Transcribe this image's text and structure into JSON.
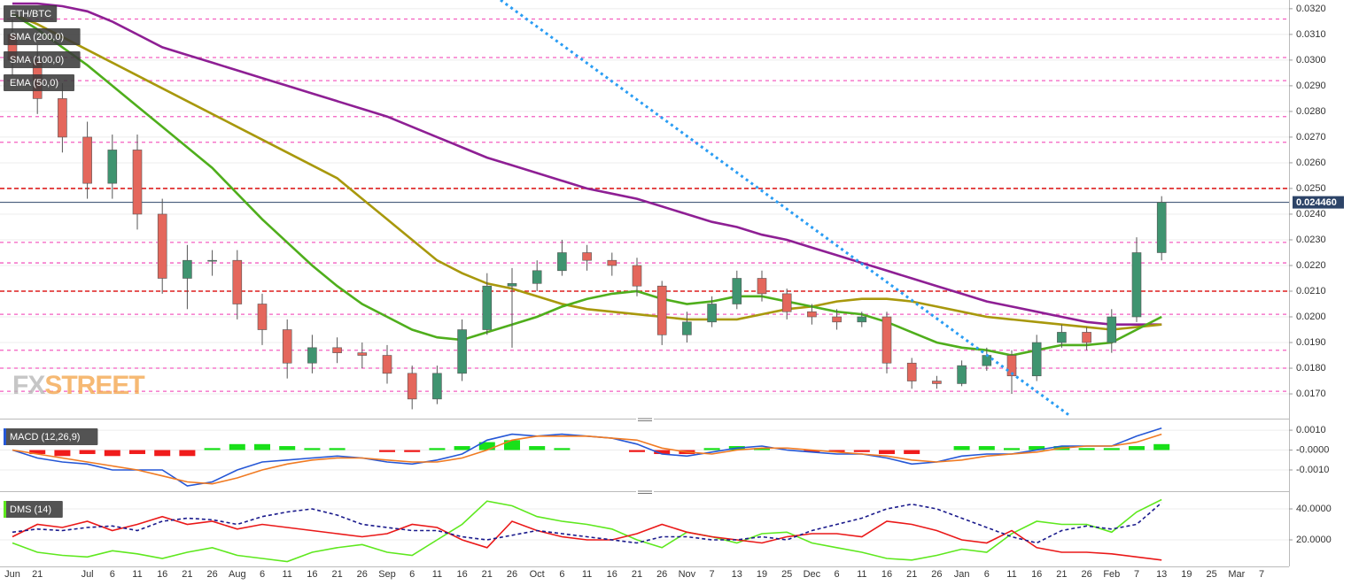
{
  "chart_data": [
    {
      "type": "candlestick",
      "title": "ETH/BTC",
      "categories": [
        "Jun",
        "21",
        null,
        "Jul",
        "6",
        "11",
        "16",
        "21",
        "26",
        "Aug",
        "6",
        "11",
        "16",
        "21",
        "26",
        "Sep",
        "6",
        "11",
        "16",
        "21",
        "26",
        "Oct",
        "6",
        "11",
        "16",
        "21",
        "26",
        "Nov",
        "7",
        "13",
        "19",
        "25",
        "Dec",
        "6",
        "11",
        "16",
        "21",
        "26",
        "Jan",
        "6",
        "11",
        "16",
        "21",
        "26",
        "Feb",
        "7",
        "13",
        "19",
        "25",
        "Mar",
        "7"
      ],
      "open": [
        0.031,
        0.03,
        0.0285,
        0.027,
        0.0252,
        0.0265,
        0.024,
        0.0215,
        0.0222,
        0.0222,
        0.0205,
        0.0195,
        0.0182,
        0.0188,
        0.0186,
        0.0185,
        0.0178,
        0.0168,
        0.0178,
        0.0195,
        0.0212,
        0.0213,
        0.0218,
        0.0225,
        0.0222,
        0.022,
        0.0212,
        0.0193,
        0.0198,
        0.0205,
        0.0215,
        0.0209,
        0.0202,
        0.02,
        0.0198,
        0.02,
        0.0182,
        0.0175,
        0.0174,
        0.0181,
        0.0185,
        0.0177,
        0.019,
        0.0194,
        0.019,
        0.02,
        0.0225,
        null,
        null,
        null,
        null
      ],
      "high": [
        0.0316,
        0.0306,
        0.0291,
        0.0276,
        0.0271,
        0.0271,
        0.0246,
        0.0228,
        0.0226,
        0.0226,
        0.0209,
        0.0199,
        0.0193,
        0.0192,
        0.019,
        0.0189,
        0.0181,
        0.0181,
        0.0199,
        0.0217,
        0.0219,
        0.0222,
        0.023,
        0.0228,
        0.0225,
        0.0223,
        0.0214,
        0.0202,
        0.0208,
        0.0218,
        0.0218,
        0.0211,
        0.0205,
        0.0203,
        0.0202,
        0.0202,
        0.0184,
        0.0177,
        0.0183,
        0.0188,
        0.0187,
        0.0193,
        0.0197,
        0.0196,
        0.0203,
        0.0231,
        0.0247,
        null,
        null,
        null,
        null
      ],
      "low": [
        0.0294,
        0.0279,
        0.0264,
        0.0246,
        0.0246,
        0.0234,
        0.0209,
        0.0203,
        0.0216,
        0.0199,
        0.0189,
        0.0176,
        0.0178,
        0.0182,
        0.018,
        0.0174,
        0.0164,
        0.0166,
        0.0175,
        0.0193,
        0.0188,
        0.021,
        0.0216,
        0.0218,
        0.0216,
        0.0208,
        0.0189,
        0.019,
        0.0196,
        0.0203,
        0.0206,
        0.0199,
        0.0197,
        0.0195,
        0.0196,
        0.0178,
        0.0172,
        0.0172,
        0.0173,
        0.0179,
        0.017,
        0.0175,
        0.0188,
        0.0187,
        0.0186,
        0.0198,
        0.0222,
        null,
        null,
        null,
        null
      ],
      "close": [
        0.03,
        0.0285,
        0.027,
        0.0252,
        0.0265,
        0.024,
        0.0215,
        0.0222,
        0.0222,
        0.0205,
        0.0195,
        0.0182,
        0.0188,
        0.0186,
        0.0185,
        0.0178,
        0.0168,
        0.0178,
        0.0195,
        0.0212,
        0.0213,
        0.0218,
        0.0225,
        0.0222,
        0.022,
        0.0212,
        0.0193,
        0.0198,
        0.0205,
        0.0215,
        0.0209,
        0.0202,
        0.02,
        0.0198,
        0.02,
        0.0182,
        0.0175,
        0.0174,
        0.0181,
        0.0185,
        0.0177,
        0.019,
        0.0194,
        0.019,
        0.02,
        0.0225,
        0.02446,
        null,
        null,
        null,
        null
      ],
      "up_color": "#3f9470",
      "down_color": "#e4675c",
      "series": [
        {
          "name": "SMA (200,0)",
          "color": "#8e1f94",
          "values": [
            0.0322,
            0.0322,
            0.0321,
            0.0319,
            0.0315,
            0.031,
            0.0305,
            0.0302,
            0.0299,
            0.0296,
            0.0293,
            0.029,
            0.0287,
            0.0284,
            0.0281,
            0.0278,
            0.0274,
            0.027,
            0.0266,
            0.0262,
            0.0259,
            0.0256,
            0.0253,
            0.025,
            0.0248,
            0.0246,
            0.0243,
            0.024,
            0.0237,
            0.0235,
            0.0232,
            0.023,
            0.0227,
            0.0224,
            0.0221,
            0.0218,
            0.0215,
            0.0212,
            0.0209,
            0.0206,
            0.0204,
            0.0202,
            0.02,
            0.0198,
            0.0197,
            0.0197,
            0.0197,
            null,
            null,
            null,
            null
          ]
        },
        {
          "name": "SMA (100,0)",
          "color": "#a8980c",
          "values": [
            0.0318,
            0.0314,
            0.0309,
            0.0304,
            0.0299,
            0.0294,
            0.0289,
            0.0284,
            0.0279,
            0.0274,
            0.0269,
            0.0264,
            0.0259,
            0.0254,
            0.0246,
            0.0238,
            0.023,
            0.0222,
            0.0217,
            0.0213,
            0.0211,
            0.0208,
            0.0205,
            0.0203,
            0.0202,
            0.0201,
            0.02,
            0.0199,
            0.0199,
            0.0199,
            0.0201,
            0.0203,
            0.0204,
            0.0206,
            0.0207,
            0.0207,
            0.0206,
            0.0204,
            0.0202,
            0.02,
            0.0199,
            0.0198,
            0.0197,
            0.0196,
            0.0195,
            0.0196,
            0.0197,
            null,
            null,
            null,
            null
          ]
        },
        {
          "name": "EMA (50,0)",
          "color": "#4fae1c",
          "values": [
            0.0318,
            0.0312,
            0.0305,
            0.0298,
            0.029,
            0.0282,
            0.0274,
            0.0266,
            0.0258,
            0.0248,
            0.0238,
            0.0229,
            0.022,
            0.0212,
            0.0205,
            0.02,
            0.0195,
            0.0192,
            0.0191,
            0.0194,
            0.0197,
            0.02,
            0.0204,
            0.0207,
            0.0209,
            0.021,
            0.0207,
            0.0205,
            0.0206,
            0.0208,
            0.0208,
            0.0206,
            0.0204,
            0.0202,
            0.0201,
            0.0198,
            0.0194,
            0.019,
            0.0188,
            0.0187,
            0.0185,
            0.0187,
            0.0189,
            0.0189,
            0.019,
            0.0195,
            0.02,
            null,
            null,
            null,
            null
          ]
        }
      ],
      "levels": [
        0.0316,
        0.0301,
        0.0292,
        0.0278,
        0.0268,
        0.0229,
        0.0221,
        0.0201,
        0.0187,
        0.018,
        0.0171
      ],
      "levels_color": "#f45fc0",
      "major_levels": [
        0.025,
        0.021
      ],
      "major_levels_color": "#dd1f1f",
      "last_price": {
        "value": 0.02446,
        "label": "0.024460"
      },
      "ylim": [
        0.01614,
        0.03234
      ],
      "yticks": [
        {
          "value": 0.017,
          "label": "0.0170"
        },
        {
          "value": 0.018,
          "label": "0.0180"
        },
        {
          "value": 0.019,
          "label": "0.0190"
        },
        {
          "value": 0.02,
          "label": "0.0200"
        },
        {
          "value": 0.021,
          "label": "0.0210"
        },
        {
          "value": 0.022,
          "label": "0.0220"
        },
        {
          "value": 0.023,
          "label": "0.0230"
        },
        {
          "value": 0.024,
          "label": "0.0240"
        },
        {
          "value": 0.025,
          "label": "0.0250"
        },
        {
          "value": 0.026,
          "label": "0.0260"
        },
        {
          "value": 0.027,
          "label": "0.0270"
        },
        {
          "value": 0.028,
          "label": "0.0280"
        },
        {
          "value": 0.029,
          "label": "0.0290"
        },
        {
          "value": 0.03,
          "label": "0.0300"
        },
        {
          "value": 0.031,
          "label": "0.0310"
        },
        {
          "value": 0.032,
          "label": "0.0320"
        }
      ],
      "grid": true,
      "watermark": [
        "FX",
        "STREET"
      ]
    },
    {
      "type": "line",
      "title": "MACD (12,26,9)",
      "series": [
        {
          "color": "#2557d6",
          "values": [
            0.0,
            -0.0004,
            -0.0006,
            -0.0007,
            -0.001,
            -0.001,
            -0.001,
            -0.0018,
            -0.0016,
            -0.001,
            -0.0006,
            -0.0005,
            -0.0004,
            -0.0003,
            -0.0004,
            -0.0006,
            -0.0007,
            -0.0005,
            -0.0002,
            0.0005,
            0.0008,
            0.0007,
            0.0008,
            0.0007,
            0.0006,
            0.0003,
            -0.0002,
            -0.0003,
            -0.0001,
            0.0001,
            0.0002,
            0.0,
            -0.0001,
            -0.0002,
            -0.0002,
            -0.0004,
            -0.0007,
            -0.0006,
            -0.0003,
            -0.0002,
            -0.0002,
            0.0,
            0.0002,
            0.0002,
            0.0002,
            0.0007,
            0.0011,
            null,
            null,
            null,
            null
          ]
        },
        {
          "color": "#f07a22",
          "values": [
            0.0,
            -0.0002,
            -0.0004,
            -0.0006,
            -0.0008,
            -0.001,
            -0.0013,
            -0.0016,
            -0.0017,
            -0.0014,
            -0.001,
            -0.0007,
            -0.0005,
            -0.0004,
            -0.0004,
            -0.0005,
            -0.0006,
            -0.0006,
            -0.0004,
            0.0,
            0.0005,
            0.0007,
            0.0007,
            0.0007,
            0.0006,
            0.0005,
            0.0001,
            -0.0001,
            -0.0002,
            0.0,
            0.0001,
            0.0001,
            0.0,
            -0.0001,
            -0.0002,
            -0.0003,
            -0.0005,
            -0.0006,
            -0.0005,
            -0.0003,
            -0.0002,
            -0.0001,
            0.0001,
            0.0002,
            0.0002,
            0.0004,
            0.0008,
            null,
            null,
            null,
            null
          ]
        }
      ],
      "histogram": {
        "positive_color": "#19e019",
        "negative_color": "#f01c1c",
        "values": [
          0,
          -0.0002,
          -0.0003,
          -0.0002,
          -0.0003,
          -0.0002,
          -0.0003,
          -0.0003,
          0.0001,
          0.0003,
          0.0003,
          0.0002,
          0.0001,
          0.0001,
          0,
          -0.0001,
          -0.0001,
          0.0001,
          0.0002,
          0.0004,
          0.0005,
          0.0002,
          0.0001,
          0,
          0,
          -0.0001,
          -0.0002,
          -0.0002,
          0.0001,
          0.0002,
          0.0001,
          0,
          -0.0001,
          -0.0001,
          -0.0001,
          -0.0002,
          -0.0002,
          0,
          0.0002,
          0.0002,
          0.0001,
          0.0002,
          0.0002,
          0.0001,
          0.0001,
          0.0002,
          0.0003,
          null,
          null,
          null,
          null
        ]
      },
      "ylim": [
        -0.00198,
        0.00136
      ],
      "yticks": [
        {
          "value": -0.001,
          "label": "-0.0010"
        },
        {
          "value": 0,
          "label": "-0.0000"
        },
        {
          "value": 0.001,
          "label": "0.0010"
        }
      ]
    },
    {
      "type": "line",
      "title": "DMS (14)",
      "series": [
        {
          "color": "#5ee81e",
          "values": [
            18,
            12,
            10,
            9,
            13,
            11,
            8,
            12,
            15,
            10,
            8,
            6,
            12,
            15,
            17,
            12,
            10,
            20,
            30,
            45,
            42,
            35,
            32,
            30,
            27,
            20,
            15,
            25,
            22,
            18,
            24,
            25,
            18,
            15,
            12,
            8,
            7,
            10,
            14,
            12,
            24,
            32,
            30,
            30,
            25,
            38,
            46,
            null,
            null,
            null,
            null
          ]
        },
        {
          "color": "#ea1818",
          "values": [
            22,
            30,
            28,
            32,
            26,
            30,
            35,
            30,
            32,
            27,
            30,
            28,
            26,
            24,
            22,
            24,
            30,
            28,
            20,
            15,
            32,
            26,
            22,
            20,
            20,
            24,
            30,
            25,
            22,
            20,
            18,
            22,
            24,
            24,
            22,
            32,
            30,
            26,
            20,
            18,
            26,
            15,
            12,
            12,
            11,
            9,
            7,
            null,
            null,
            null,
            null
          ]
        },
        {
          "color": "#1a1a8c",
          "dashed": true,
          "values": [
            25,
            27,
            26,
            28,
            29,
            26,
            32,
            34,
            33,
            30,
            35,
            38,
            40,
            36,
            30,
            28,
            26,
            26,
            22,
            20,
            23,
            26,
            24,
            22,
            20,
            18,
            22,
            22,
            20,
            20,
            22,
            20,
            26,
            30,
            34,
            40,
            43,
            40,
            34,
            28,
            22,
            18,
            26,
            29,
            27,
            30,
            44,
            null,
            null,
            null,
            null
          ]
        }
      ],
      "ylim": [
        2.86,
        48.57
      ],
      "yticks": [
        {
          "value": 20,
          "label": "20.0000"
        },
        {
          "value": 40,
          "label": "40.0000"
        }
      ]
    }
  ]
}
